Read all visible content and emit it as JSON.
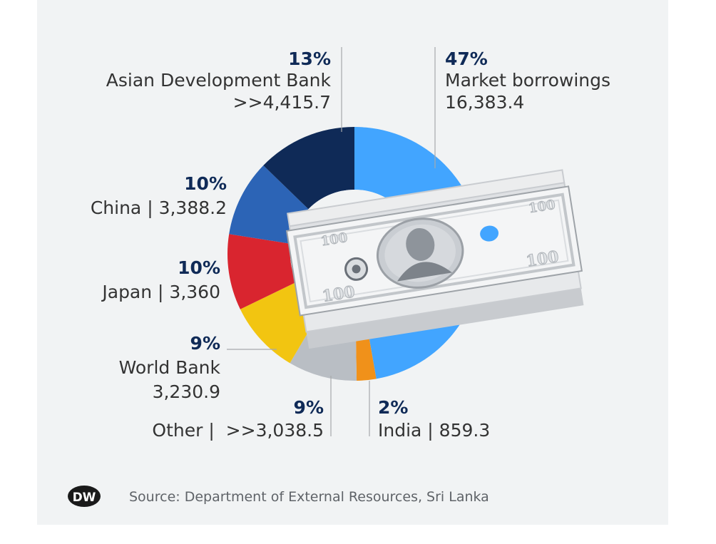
{
  "chart_data": {
    "type": "pie",
    "style": "donut",
    "unit_note": "",
    "slices": [
      {
        "name": "Market borrowings",
        "percent_label": "47%",
        "value_label": "16,383.4",
        "value": 16383.4,
        "color": "#42a5ff"
      },
      {
        "name": "India",
        "percent_label": "2%",
        "value_label": "859.3",
        "value": 859.3,
        "color": "#f0911a"
      },
      {
        "name": "Other",
        "percent_label": "9%",
        "value_label": ">>3,038.5",
        "value": 3038.5,
        "color": "#b9bec4"
      },
      {
        "name": "World Bank",
        "percent_label": "9%",
        "value_label": "3,230.9",
        "value": 3230.9,
        "color": "#f2c511"
      },
      {
        "name": "Japan",
        "percent_label": "10%",
        "value_label": "3,360",
        "value": 3360,
        "color": "#d9252f"
      },
      {
        "name": "China",
        "percent_label": "10%",
        "value_label": "3,388.2",
        "value": 3388.2,
        "color": "#2c64b6"
      },
      {
        "name": "Asian Development Bank",
        "percent_label": "13%",
        "value_label": ">>4,415.7",
        "value": 4415.7,
        "color": "#0f2a57"
      }
    ]
  },
  "labels": {
    "mkt_pct": "47%",
    "mkt_name": "Market borrowings",
    "mkt_val": "16,383.4",
    "adb_pct": "13%",
    "adb_name": "Asian Development Bank",
    "adb_val": ">>4,415.7",
    "china_pct": "10%",
    "china_text": "China | 3,388.2",
    "japan_pct": "10%",
    "japan_text": "Japan | 3,360",
    "wb_pct": "9%",
    "wb_name": "World Bank",
    "wb_val": "3,230.9",
    "other_pct": "9%",
    "other_text": "Other |  >>3,038.5",
    "india_pct": "2%",
    "india_text": "India | 859.3"
  },
  "banknote": {
    "denomination": "100"
  },
  "footer": {
    "logo_text": "DW",
    "source": "Source: Department of External Resources, Sri Lanka"
  },
  "colors": {
    "navy_text": "#0f2a57",
    "body_text": "#333333",
    "leader": "#a7a9ac",
    "center": "#f1f3f4"
  }
}
